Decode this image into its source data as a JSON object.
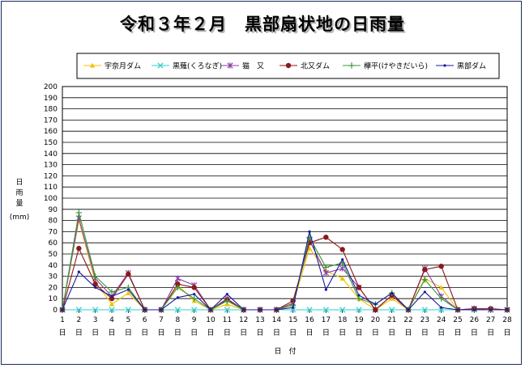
{
  "chart_data": {
    "type": "line",
    "title": "令和３年２月　黒部扇状地の日雨量",
    "ylabel": [
      "日",
      "雨",
      "量",
      "(mm)"
    ],
    "xlabel": "日　付",
    "x_day_suffix": "日",
    "ylim": [
      0,
      200
    ],
    "ytick_step": 10,
    "grid": true,
    "legend_position": "top",
    "days": [
      1,
      2,
      3,
      4,
      5,
      6,
      7,
      8,
      9,
      10,
      11,
      12,
      13,
      14,
      15,
      16,
      17,
      18,
      19,
      20,
      21,
      22,
      23,
      24,
      25,
      26,
      27,
      28
    ],
    "series": [
      {
        "name": "宇奈月ダム",
        "color": "#f0c000",
        "marker": "triangle",
        "values": [
          0,
          80,
          25,
          5,
          15,
          0,
          0,
          22,
          8,
          0,
          5,
          0,
          0,
          0,
          5,
          55,
          35,
          28,
          10,
          0,
          10,
          0,
          28,
          20,
          0,
          0,
          0,
          0
        ]
      },
      {
        "name": "黒薙(くろなぎ)",
        "color": "#33cccc",
        "marker": "x",
        "values": [
          0,
          0,
          0,
          0,
          0,
          0,
          0,
          0,
          0,
          0,
          0,
          0,
          0,
          0,
          0,
          0,
          0,
          0,
          0,
          0,
          0,
          0,
          0,
          0,
          0,
          0,
          0,
          0
        ]
      },
      {
        "name": "猫　又",
        "color": "#8b3aa8",
        "marker": "star",
        "values": [
          0,
          82,
          28,
          12,
          33,
          0,
          0,
          28,
          22,
          0,
          10,
          0,
          0,
          0,
          6,
          62,
          33,
          37,
          20,
          0,
          13,
          0,
          37,
          12,
          0,
          1,
          0,
          0
        ]
      },
      {
        "name": "北又ダム",
        "color": "#8b1a1a",
        "marker": "circle",
        "values": [
          0,
          55,
          23,
          10,
          32,
          0,
          0,
          23,
          20,
          0,
          9,
          0,
          0,
          0,
          8,
          60,
          65,
          54,
          20,
          0,
          13,
          0,
          36,
          39,
          0,
          1,
          1,
          0
        ]
      },
      {
        "name": "欅平(けやきだいら)",
        "color": "#3a9a3a",
        "marker": "plus",
        "values": [
          0,
          87,
          30,
          16,
          20,
          0,
          0,
          20,
          10,
          0,
          8,
          0,
          0,
          0,
          4,
          65,
          38,
          42,
          10,
          5,
          15,
          0,
          27,
          10,
          0,
          0,
          0,
          0
        ]
      },
      {
        "name": "黒部ダム",
        "color": "#1a1aa0",
        "marker": "dot",
        "values": [
          0,
          34,
          20,
          12,
          18,
          0,
          0,
          11,
          14,
          0,
          14,
          0,
          0,
          0,
          2,
          70,
          18,
          45,
          13,
          5,
          15,
          0,
          16,
          2,
          0,
          0,
          0,
          0
        ]
      }
    ]
  }
}
